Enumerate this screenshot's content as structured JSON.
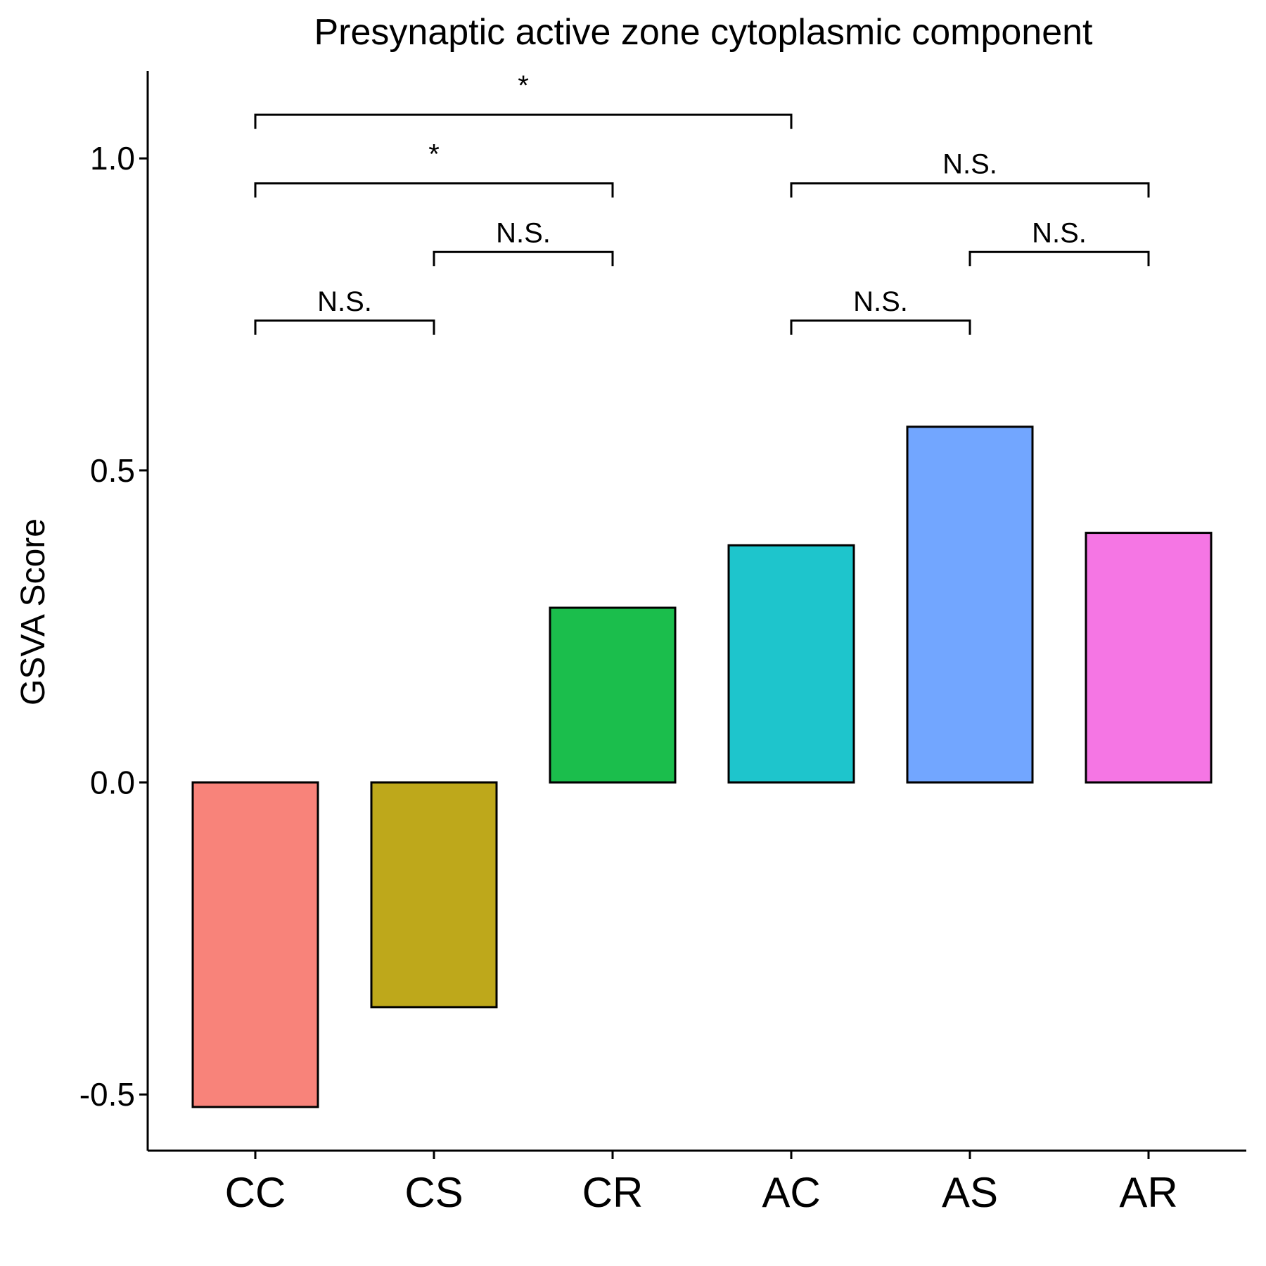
{
  "chart_data": {
    "type": "bar",
    "title": "Presynaptic active zone cytoplasmic component",
    "xlabel": "",
    "ylabel": "GSVA Score",
    "categories": [
      "CC",
      "CS",
      "CR",
      "AC",
      "AS",
      "AR"
    ],
    "values": [
      -0.52,
      -0.36,
      0.28,
      0.38,
      0.57,
      0.4
    ],
    "colors": [
      "#F8837A",
      "#BEA81B",
      "#1BBE4C",
      "#1EC5CC",
      "#72A6FF",
      "#F576E4"
    ],
    "ylim": [
      -0.59,
      1.14
    ],
    "yticks": [
      -0.5,
      0.0,
      0.5,
      1.0
    ],
    "ytick_labels": [
      "-0.5",
      "0.0",
      "0.5",
      "1.0"
    ],
    "grid": false,
    "legend": "none",
    "comparisons": [
      {
        "from": "CC",
        "to": "CS",
        "y": 0.74,
        "label": "N.S."
      },
      {
        "from": "CS",
        "to": "CR",
        "y": 0.85,
        "label": "N.S."
      },
      {
        "from": "CC",
        "to": "CR",
        "y": 0.96,
        "label": "*"
      },
      {
        "from": "CC",
        "to": "AC",
        "y": 1.07,
        "label": "*"
      },
      {
        "from": "AC",
        "to": "AS",
        "y": 0.74,
        "label": "N.S."
      },
      {
        "from": "AS",
        "to": "AR",
        "y": 0.85,
        "label": "N.S."
      },
      {
        "from": "AC",
        "to": "AR",
        "y": 0.96,
        "label": "N.S."
      }
    ]
  }
}
